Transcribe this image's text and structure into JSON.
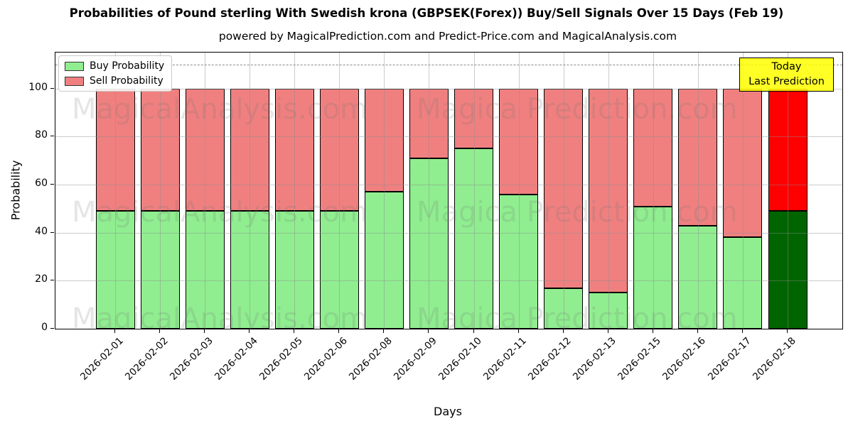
{
  "chart_data": {
    "type": "bar",
    "stacked": true,
    "title": "Probabilities of Pound sterling With Swedish krona (GBPSEK(Forex)) Buy/Sell Signals Over 15 Days (Feb 19)",
    "subtitle": "powered by MagicalPrediction.com and Predict-Price.com and MagicalAnalysis.com",
    "xlabel": "Days",
    "ylabel": "Probability",
    "categories": [
      "2026-02-01",
      "2026-02-02",
      "2026-02-03",
      "2026-02-04",
      "2026-02-05",
      "2026-02-06",
      "2026-02-08",
      "2026-02-09",
      "2026-02-10",
      "2026-02-11",
      "2026-02-12",
      "2026-02-13",
      "2026-02-15",
      "2026-02-16",
      "2026-02-17",
      "2026-02-18"
    ],
    "series": [
      {
        "name": "Buy Probability",
        "color": "#90EE90",
        "values": [
          49,
          49,
          49,
          49,
          49,
          49,
          57,
          71,
          75,
          56,
          17,
          15,
          51,
          43,
          38,
          49
        ]
      },
      {
        "name": "Sell Probability",
        "color": "#F08080",
        "values": [
          51,
          51,
          51,
          51,
          51,
          51,
          43,
          29,
          25,
          44,
          83,
          85,
          49,
          57,
          62,
          51
        ]
      }
    ],
    "yticks": [
      0,
      20,
      40,
      60,
      80,
      100
    ],
    "ylim": [
      0,
      115
    ],
    "dashed_gridline_y": 110,
    "grid": true,
    "legend_position": "upper left",
    "today": {
      "index": 15,
      "category": "2026-02-18",
      "buy_color": "#006400",
      "sell_color": "#FF0000",
      "label_line1": "Today",
      "label_line2": "Last Prediction",
      "box_color": "#FFFF00"
    },
    "watermarks": {
      "left_text": "MagicalAnalysis.com",
      "right_text": "Magica Prediction.com"
    }
  }
}
